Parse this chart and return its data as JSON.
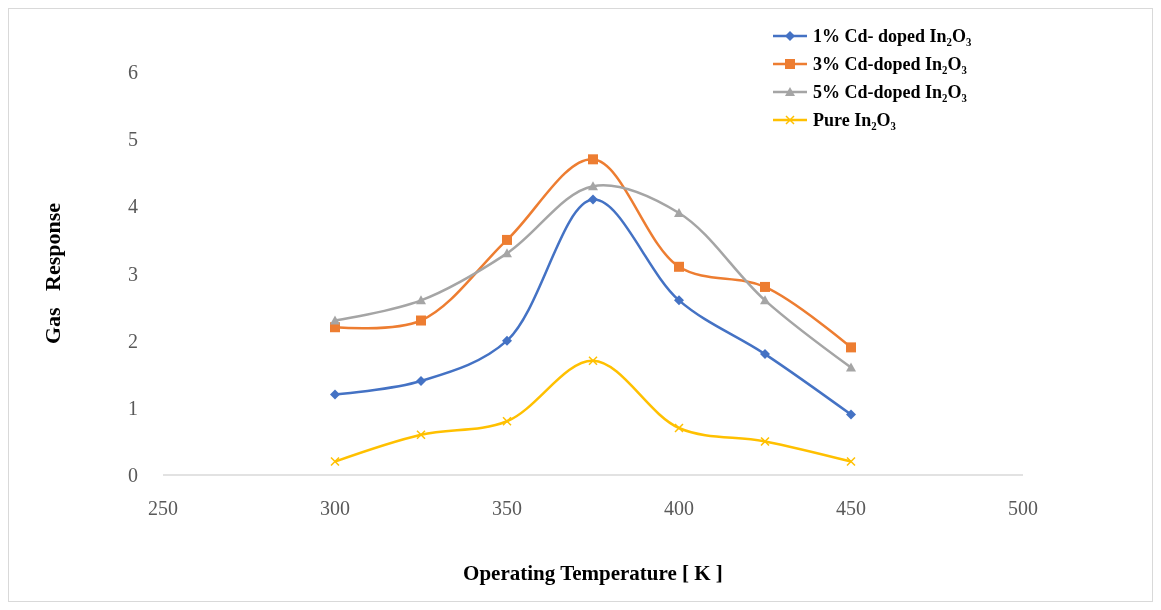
{
  "chart_data": {
    "type": "line",
    "xlabel": "Operating Temperature [ K ]",
    "ylabel": "Gas   Response",
    "x": [
      300,
      325,
      350,
      375,
      400,
      425,
      450
    ],
    "xlim": [
      250,
      500
    ],
    "xticks": [
      250,
      300,
      350,
      400,
      450,
      500
    ],
    "ylim": [
      0,
      6
    ],
    "yticks": [
      0,
      1,
      2,
      3,
      4,
      5,
      6
    ],
    "grid": false,
    "legend": "top right",
    "series": [
      {
        "name": "1% Cd- doped In₂O₃",
        "color": "#4472c4",
        "marker": "diamond",
        "values": [
          1.2,
          1.4,
          2.0,
          4.1,
          2.6,
          1.8,
          0.9
        ]
      },
      {
        "name": "3% Cd-doped In₂O₃",
        "color": "#ed7d31",
        "marker": "square",
        "values": [
          2.2,
          2.3,
          3.5,
          4.7,
          3.1,
          2.8,
          1.9
        ]
      },
      {
        "name": "5% Cd-doped In₂O₃",
        "color": "#a5a5a5",
        "marker": "triangle",
        "values": [
          2.3,
          2.6,
          3.3,
          4.3,
          3.9,
          2.6,
          1.6
        ]
      },
      {
        "name": "Pure In₂O₃",
        "color": "#ffc000",
        "marker": "cross",
        "values": [
          0.2,
          0.6,
          0.8,
          1.7,
          0.7,
          0.5,
          0.2
        ]
      }
    ]
  }
}
